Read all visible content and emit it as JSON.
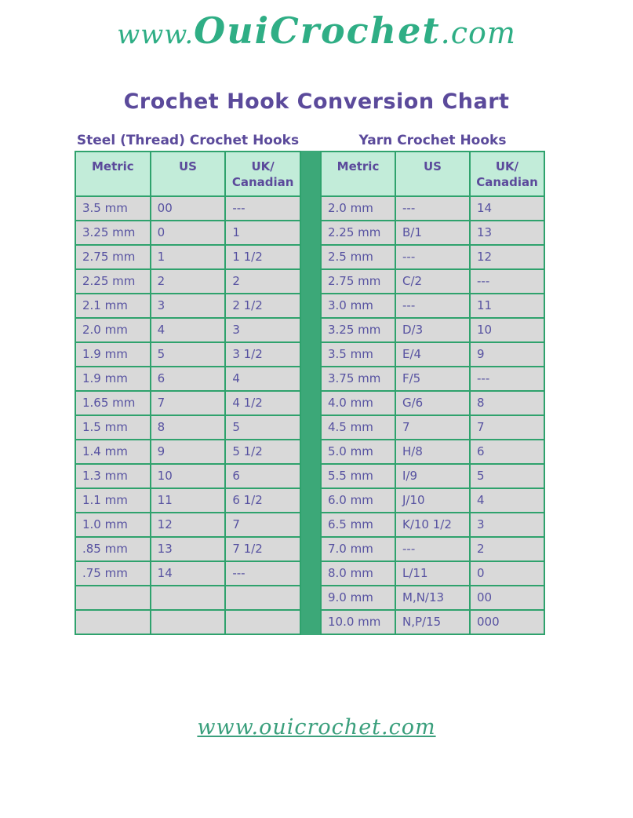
{
  "logo": {
    "prefix": "www.",
    "brand": "OuiCrochet",
    "suffix": ".com"
  },
  "title": "Crochet Hook Conversion Chart",
  "tables": {
    "steel": {
      "subtitle": "Steel (Thread) Crochet Hooks",
      "headers": [
        "Metric",
        "US",
        "UK/\nCanadian"
      ],
      "rows": [
        [
          "3.5 mm",
          "00",
          "---"
        ],
        [
          "3.25 mm",
          "0",
          "1"
        ],
        [
          "2.75 mm",
          "1",
          "1 1/2"
        ],
        [
          "2.25 mm",
          "2",
          "2"
        ],
        [
          "2.1 mm",
          "3",
          "2 1/2"
        ],
        [
          "2.0 mm",
          "4",
          "3"
        ],
        [
          "1.9 mm",
          "5",
          "3 1/2"
        ],
        [
          "1.9 mm",
          "6",
          "4"
        ],
        [
          "1.65 mm",
          "7",
          "4 1/2"
        ],
        [
          "1.5 mm",
          "8",
          "5"
        ],
        [
          "1.4 mm",
          "9",
          "5 1/2"
        ],
        [
          "1.3 mm",
          "10",
          "6"
        ],
        [
          "1.1 mm",
          "11",
          "6 1/2"
        ],
        [
          "1.0 mm",
          "12",
          "7"
        ],
        [
          ".85 mm",
          "13",
          "7 1/2"
        ],
        [
          ".75 mm",
          "14",
          "---"
        ],
        [
          "",
          "",
          ""
        ],
        [
          "",
          "",
          ""
        ]
      ]
    },
    "yarn": {
      "subtitle": "Yarn Crochet Hooks",
      "headers": [
        "Metric",
        "US",
        "UK/\nCanadian"
      ],
      "rows": [
        [
          "2.0 mm",
          "---",
          "14"
        ],
        [
          "2.25 mm",
          "B/1",
          "13"
        ],
        [
          "2.5 mm",
          "---",
          "12"
        ],
        [
          "2.75 mm",
          "C/2",
          "---"
        ],
        [
          "3.0 mm",
          "---",
          "11"
        ],
        [
          "3.25 mm",
          "D/3",
          "10"
        ],
        [
          "3.5 mm",
          "E/4",
          "9"
        ],
        [
          "3.75 mm",
          "F/5",
          "---"
        ],
        [
          "4.0 mm",
          "G/6",
          "8"
        ],
        [
          "4.5 mm",
          "7",
          "7"
        ],
        [
          "5.0 mm",
          "H/8",
          "6"
        ],
        [
          "5.5 mm",
          "I/9",
          "5"
        ],
        [
          "6.0 mm",
          "J/10",
          "4"
        ],
        [
          "6.5 mm",
          "K/10 1/2",
          "3"
        ],
        [
          "7.0 mm",
          "---",
          "2"
        ],
        [
          "8.0 mm",
          "L/11",
          "0"
        ],
        [
          "9.0 mm",
          "M,N/13",
          "00"
        ],
        [
          "10.0 mm",
          "N,P/15",
          "000"
        ]
      ]
    }
  },
  "footer": {
    "link": "www.ouicrochet.com"
  },
  "colors": {
    "accent_green": "#3ca878",
    "border_green": "#2fa26d",
    "header_cell_bg": "#c2ecd9",
    "body_cell_bg": "#d9d9d9",
    "text_purple": "#5b4a9b",
    "logo_green": "#2fae85"
  }
}
